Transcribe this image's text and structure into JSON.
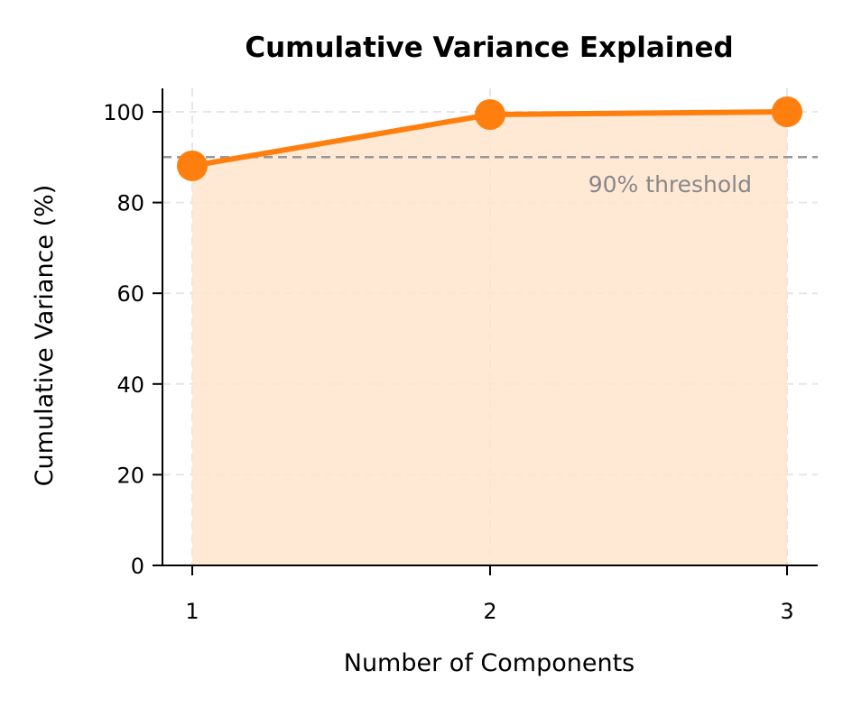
{
  "chart_data": {
    "type": "line",
    "title": "Cumulative Variance Explained",
    "xlabel": "Number of Components",
    "ylabel": "Cumulative Variance (%)",
    "x": [
      1,
      2,
      3
    ],
    "categories": [
      "1",
      "2",
      "3"
    ],
    "series": [
      {
        "name": "Cumulative Variance",
        "values": [
          88.1,
          99.4,
          100.0
        ],
        "color": "#ff7f0e",
        "fill": "#ffe4cc",
        "marker": "circle"
      }
    ],
    "xlim": [
      0.9,
      3.1
    ],
    "ylim": [
      0,
      105
    ],
    "yticks": [
      0,
      20,
      40,
      60,
      80,
      100
    ],
    "xticks": [
      1,
      2,
      3
    ],
    "grid": true,
    "reference_lines": [
      {
        "orientation": "horizontal",
        "y": 90,
        "style": "dashed",
        "color": "#999999",
        "label": "90% threshold"
      }
    ],
    "annotations": [
      {
        "text": "90% threshold",
        "x": 2.1,
        "y": 83
      }
    ],
    "legend": null
  },
  "labels": {
    "title": "Cumulative Variance Explained",
    "xlabel": "Number of Components",
    "ylabel": "Cumulative Variance (%)",
    "threshold": "90% threshold",
    "yticks": [
      "0",
      "20",
      "40",
      "60",
      "80",
      "100"
    ],
    "xticks": [
      "1",
      "2",
      "3"
    ]
  }
}
